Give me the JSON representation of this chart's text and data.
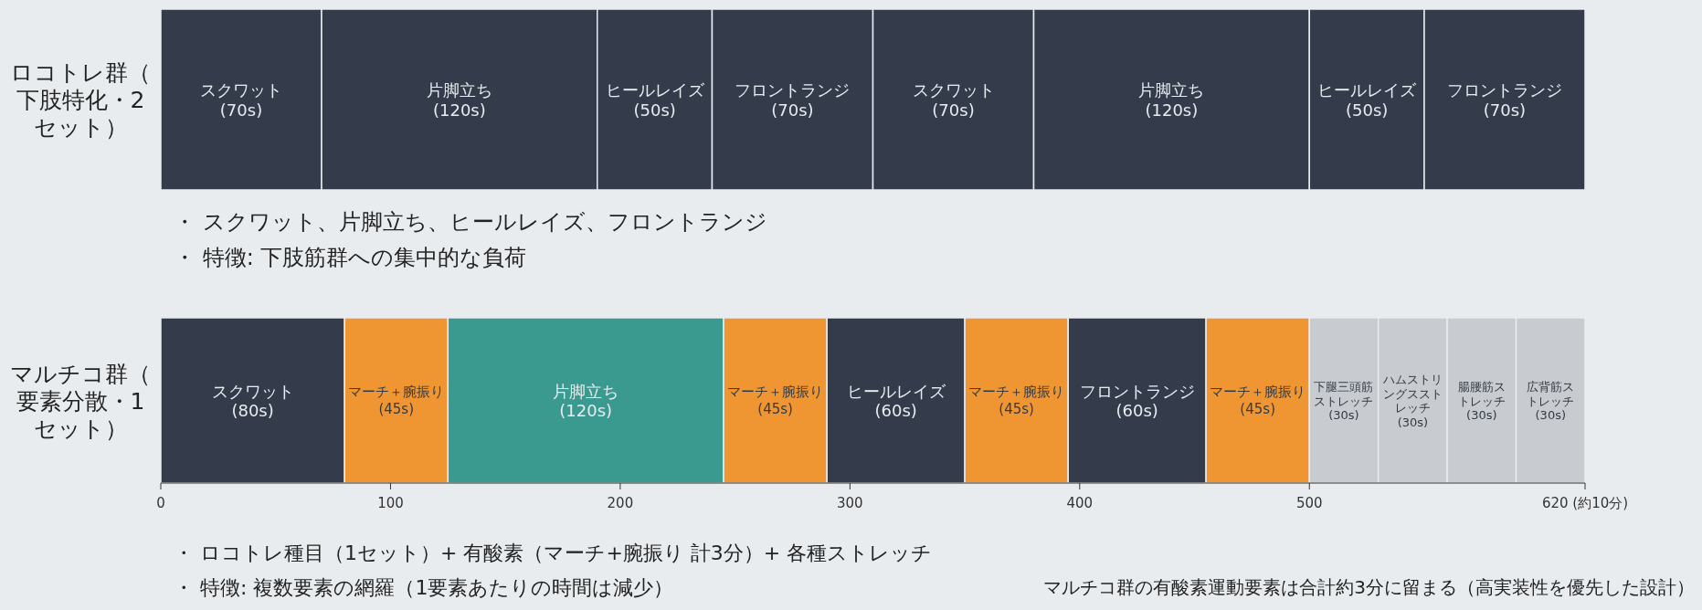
{
  "chart_data": [
    {
      "type": "bar",
      "orientation": "horizontal",
      "stacked": true,
      "grid": false,
      "tick_labels": "y",
      "xlim": [
        0,
        620
      ],
      "categories": [
        "ロコトレ群（下肢特化・2セット）"
      ],
      "series": [
        {
          "name": "スクワット",
          "color": "#343c4c",
          "values": [
            70
          ],
          "value_labels": [
            "(70s)"
          ]
        },
        {
          "name": "片脚立ち",
          "color": "#343c4c",
          "values": [
            120
          ],
          "value_labels": [
            "(120s)"
          ]
        },
        {
          "name": "ヒールレイズ",
          "color": "#343c4c",
          "values": [
            50
          ],
          "value_labels": [
            "(50s)"
          ]
        },
        {
          "name": "フロントランジ",
          "color": "#343c4c",
          "values": [
            70
          ],
          "value_labels": [
            "(70s)"
          ]
        },
        {
          "name": "スクワット",
          "color": "#343c4c",
          "values": [
            70
          ],
          "value_labels": [
            "(70s)"
          ]
        },
        {
          "name": "片脚立ち",
          "color": "#343c4c",
          "values": [
            120
          ],
          "value_labels": [
            "(120s)"
          ]
        },
        {
          "name": "ヒールレイズ",
          "color": "#343c4c",
          "values": [
            50
          ],
          "value_labels": [
            "(50s)"
          ]
        },
        {
          "name": "フロントランジ",
          "color": "#343c4c",
          "values": [
            70
          ],
          "value_labels": [
            "(70s)"
          ]
        }
      ],
      "annotations": [
        "・ スクワット、片脚立ち、ヒールレイズ、フロントランジ",
        "・ 特徴: 下肢筋群への集中的な負荷"
      ]
    },
    {
      "type": "bar",
      "orientation": "horizontal",
      "stacked": true,
      "grid": false,
      "xlim": [
        0,
        620
      ],
      "xticks": [
        0,
        100,
        200,
        300,
        400,
        500,
        {
          "value": 620,
          "label": "620 (約10分)"
        }
      ],
      "categories": [
        "マルチコ群（要素分散・1セット）"
      ],
      "series": [
        {
          "name": "スクワット",
          "color": "#343c4c",
          "values": [
            80
          ],
          "value_labels": [
            "(80s)"
          ]
        },
        {
          "name": "マーチ＋腕振り",
          "color": "#ef9633",
          "values": [
            45
          ],
          "value_labels": [
            "(45s)"
          ]
        },
        {
          "name": "片脚立ち",
          "color": "#3b9a8f",
          "values": [
            120
          ],
          "value_labels": [
            "(120s)"
          ]
        },
        {
          "name": "マーチ＋腕振り",
          "color": "#ef9633",
          "values": [
            45
          ],
          "value_labels": [
            "(45s)"
          ]
        },
        {
          "name": "ヒールレイズ",
          "color": "#343c4c",
          "values": [
            60
          ],
          "value_labels": [
            "(60s)"
          ]
        },
        {
          "name": "マーチ＋腕振り",
          "color": "#ef9633",
          "values": [
            45
          ],
          "value_labels": [
            "(45s)"
          ]
        },
        {
          "name": "フロントランジ",
          "color": "#343c4c",
          "values": [
            60
          ],
          "value_labels": [
            "(60s)"
          ]
        },
        {
          "name": "マーチ＋腕振り",
          "color": "#ef9633",
          "values": [
            45
          ],
          "value_labels": [
            "(45s)"
          ]
        },
        {
          "name": "下腿三頭筋ストレッチ",
          "color": "#c8cbcf",
          "values": [
            30
          ],
          "value_labels": [
            "(30s)"
          ]
        },
        {
          "name": "ハムストリングスストレッチ",
          "color": "#c8cbcf",
          "values": [
            30
          ],
          "value_labels": [
            "(30s)"
          ]
        },
        {
          "name": "腸腰筋ストレッチ",
          "color": "#c8cbcf",
          "values": [
            30
          ],
          "value_labels": [
            "(30s)"
          ]
        },
        {
          "name": "広背筋ストレッチ",
          "color": "#c8cbcf",
          "values": [
            30
          ],
          "value_labels": [
            "(30s)"
          ]
        }
      ],
      "annotations": [
        "・ ロコトレ種目（1セット）+ 有酸素（マーチ+腕振り 計3分）+ 各種ストレッチ",
        "・ 特徴: 複数要素の網羅（1要素あたりの時間は減少）",
        "マルチコ群の有酸素運動要素は合計約3分に留まる（高実装性を優先した設計）"
      ]
    }
  ]
}
